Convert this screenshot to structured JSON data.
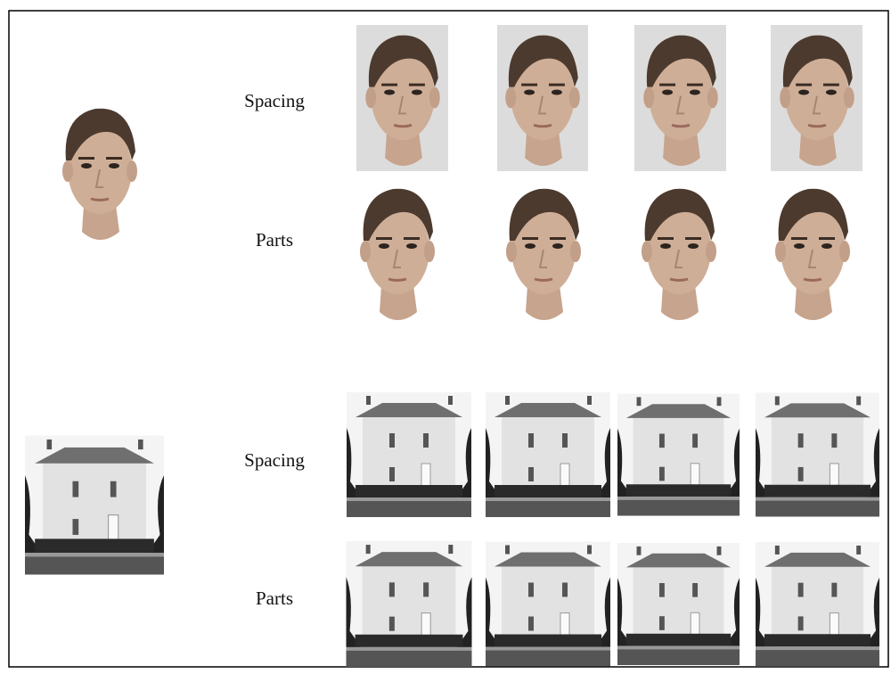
{
  "sections": [
    {
      "rows": [
        {
          "label": "Spacing"
        },
        {
          "label": "Parts"
        }
      ]
    },
    {
      "rows": [
        {
          "label": "Spacing"
        },
        {
          "label": "Parts"
        }
      ]
    }
  ]
}
